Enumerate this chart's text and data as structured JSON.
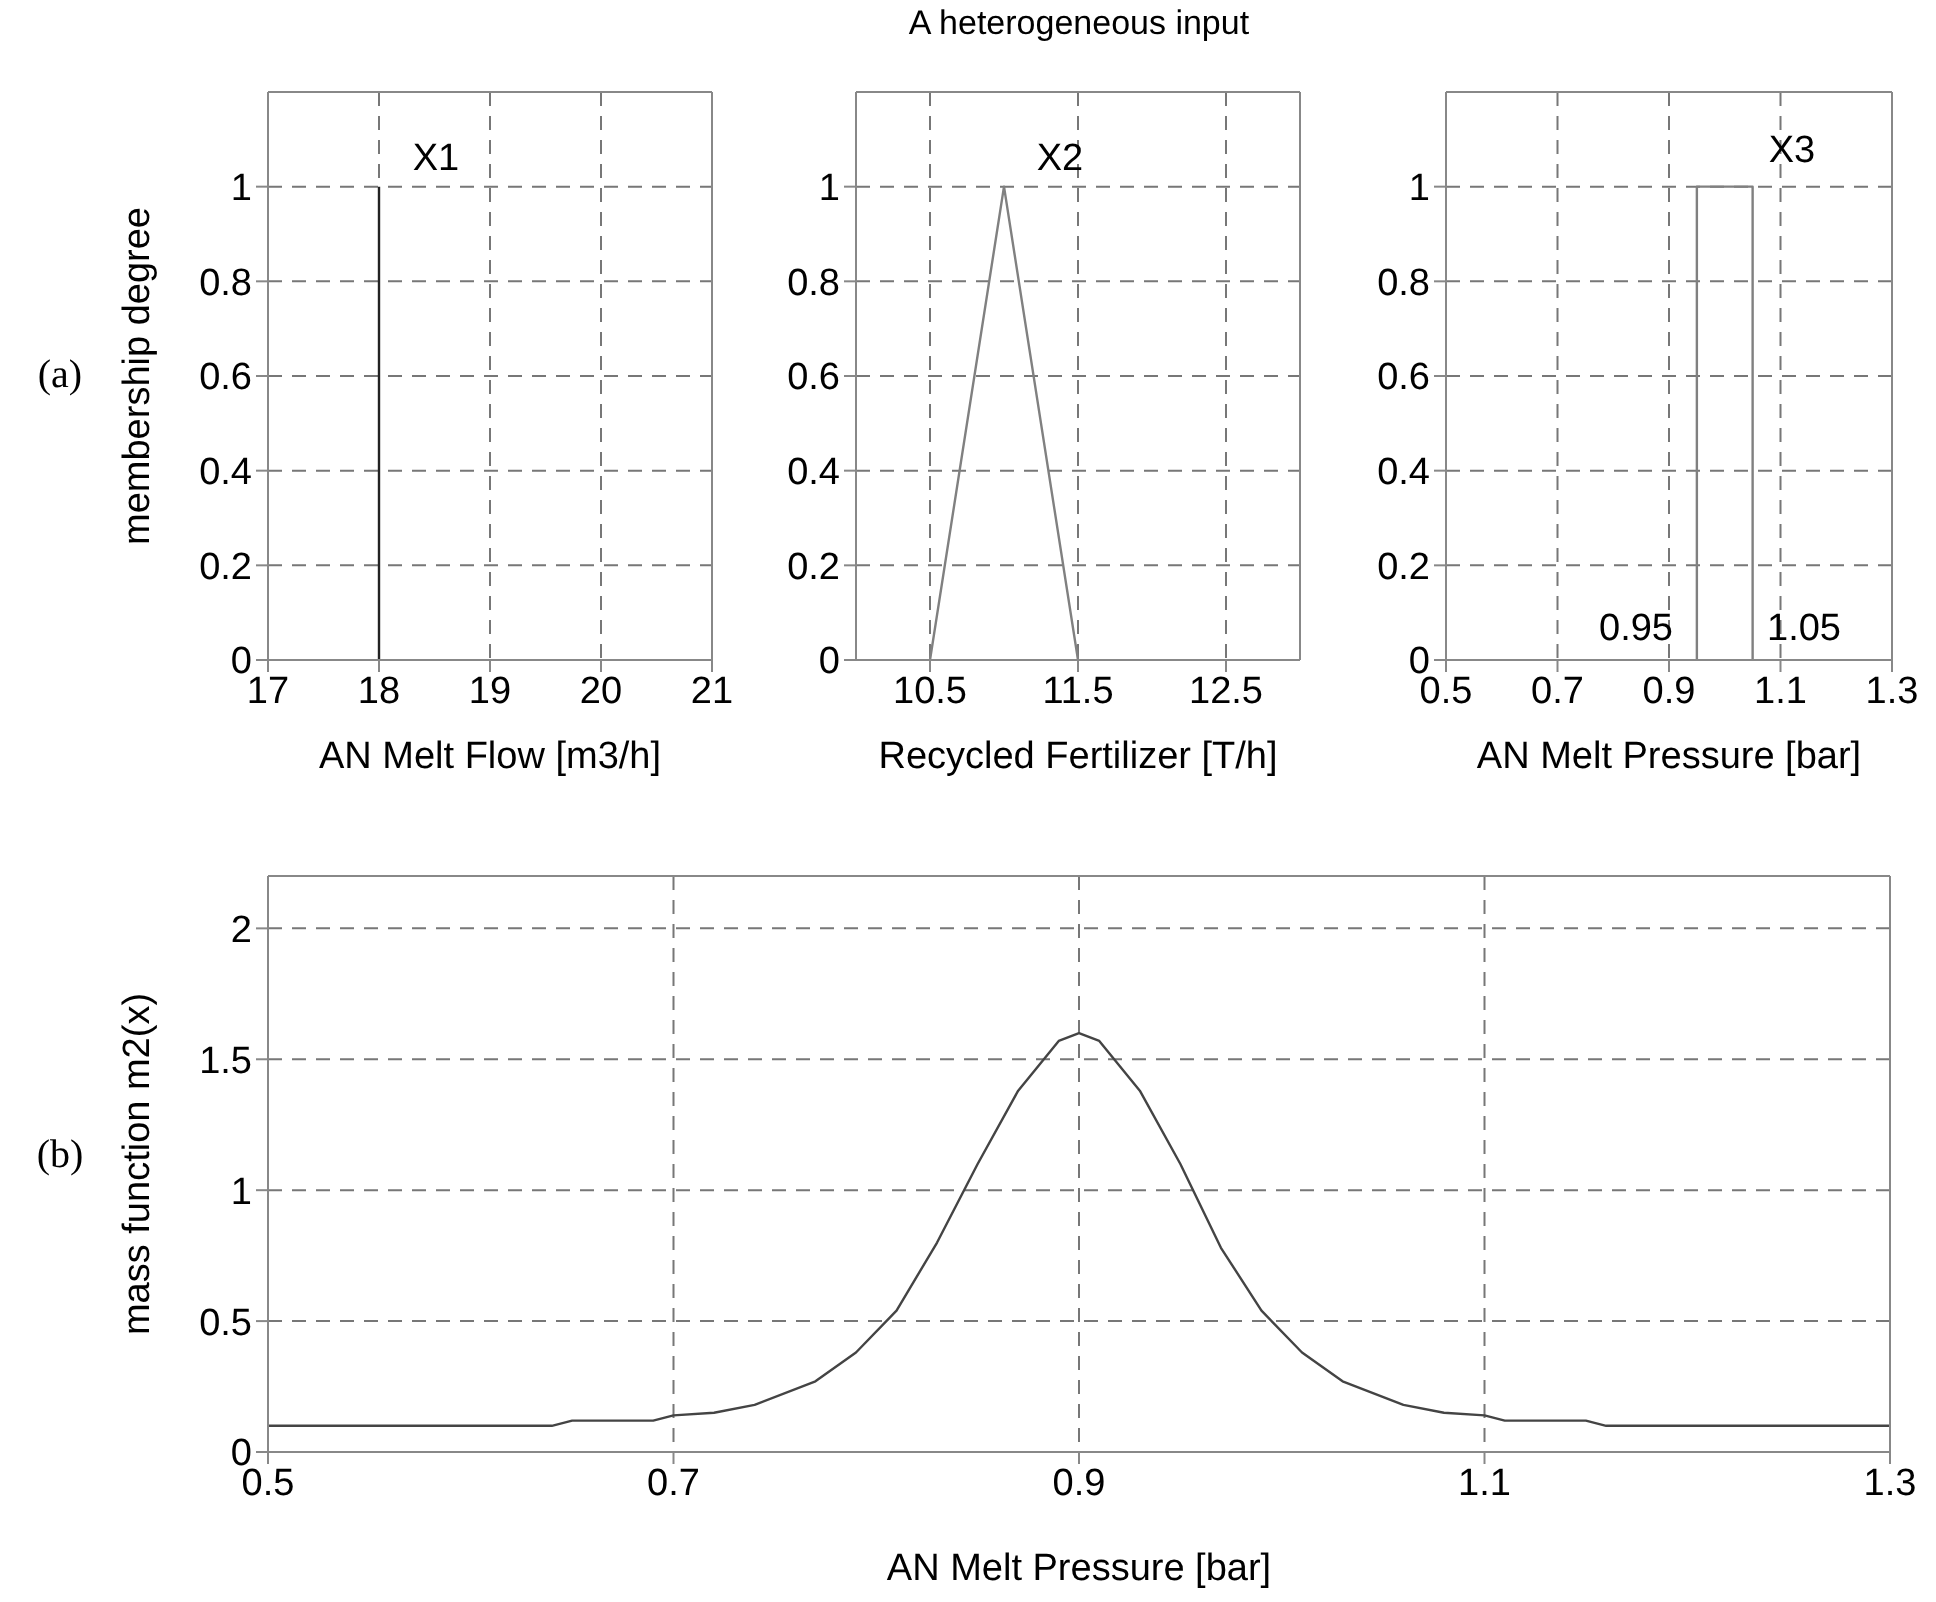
{
  "chart_data": [
    {
      "type": "line",
      "xlabel": "AN Melt Flow [m3/h]",
      "ylabel": "membership degree",
      "xlim": [
        17,
        21
      ],
      "xticks": [
        17,
        18,
        19,
        20,
        21
      ],
      "ylim": [
        0,
        1.2
      ],
      "yticks": [
        0,
        0.2,
        0.4,
        0.6,
        0.8,
        1
      ],
      "grid": true,
      "series": [
        {
          "color": "#222222",
          "x": [
            18,
            18
          ],
          "values": [
            0,
            1
          ]
        }
      ],
      "annotations": [
        "(a)",
        "X1"
      ]
    },
    {
      "type": "line",
      "title": "A heterogeneous input",
      "xlabel": "Recycled Fertilizer [T/h]",
      "xlim": [
        10,
        13
      ],
      "xticks": [
        10.5,
        11.5,
        12.5
      ],
      "ylim": [
        0,
        1.2
      ],
      "yticks": [
        0,
        0.2,
        0.4,
        0.6,
        0.8,
        1
      ],
      "grid": true,
      "series": [
        {
          "color": "#808080",
          "x": [
            10.5,
            11,
            11.5
          ],
          "values": [
            0,
            1,
            0
          ]
        }
      ],
      "annotations": [
        "X2"
      ]
    },
    {
      "type": "line",
      "xlabel": "AN Melt Pressure [bar]",
      "xlim": [
        0.5,
        1.3
      ],
      "xticks": [
        0.5,
        0.7,
        0.9,
        1.1,
        1.3
      ],
      "ylim": [
        0,
        1.2
      ],
      "yticks": [
        0,
        0.2,
        0.4,
        0.6,
        0.8,
        1
      ],
      "grid": true,
      "series": [
        {
          "color": "#808080",
          "x": [
            0.95,
            0.95,
            1.05,
            1.05
          ],
          "values": [
            0,
            1,
            1,
            0
          ]
        }
      ],
      "annotations": [
        "X3",
        "0.95",
        "1.05"
      ]
    },
    {
      "type": "line",
      "xlabel": "AN Melt Pressure [bar]",
      "ylabel": "mass function m2(x)",
      "xlim": [
        0.5,
        1.3
      ],
      "xticks": [
        0.5,
        0.7,
        0.9,
        1.1,
        1.3
      ],
      "ylim": [
        0,
        2.2
      ],
      "yticks": [
        0,
        0.5,
        1,
        1.5,
        2
      ],
      "grid": true,
      "series": [
        {
          "color": "#444444",
          "x": [
            0.5,
            0.64,
            0.65,
            0.69,
            0.7,
            0.72,
            0.74,
            0.77,
            0.79,
            0.81,
            0.83,
            0.85,
            0.87,
            0.89,
            0.9,
            0.91,
            0.93,
            0.95,
            0.97,
            0.99,
            1.01,
            1.03,
            1.06,
            1.08,
            1.1,
            1.11,
            1.15,
            1.16,
            1.3
          ],
          "values": [
            0.1,
            0.1,
            0.12,
            0.12,
            0.14,
            0.15,
            0.18,
            0.27,
            0.38,
            0.54,
            0.8,
            1.1,
            1.38,
            1.57,
            1.6,
            1.57,
            1.38,
            1.1,
            0.78,
            0.54,
            0.38,
            0.27,
            0.18,
            0.15,
            0.14,
            0.12,
            0.12,
            0.1,
            0.1
          ]
        }
      ],
      "annotations": [
        "(b)"
      ]
    }
  ]
}
